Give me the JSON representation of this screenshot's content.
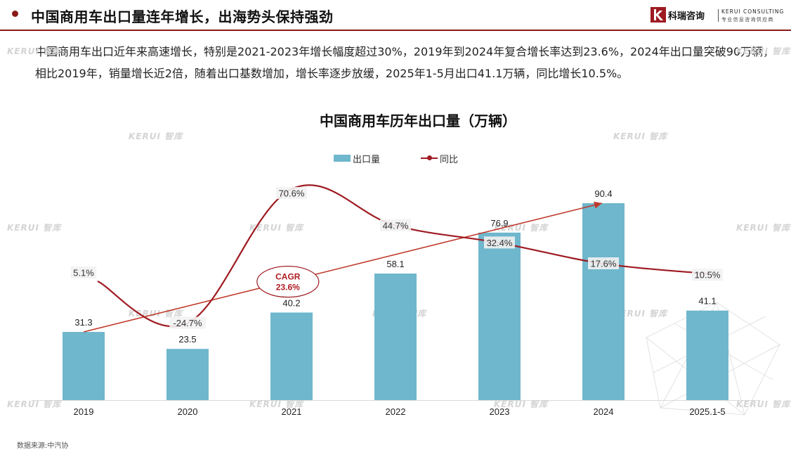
{
  "header": {
    "title": "中国商用车出口量连年增长，出海势头保持强劲",
    "brand_cn": "科瑞咨询",
    "brand_en": "KERUI CONSULTING",
    "brand_en_sub": "专业信息咨询供应商"
  },
  "description": "中国商用车出口近年来高速增长，特别是2021-2023年增长幅度超过30%，2019年到2024年复合增长率达到23.6%，2024年出口量突破90万辆，相比2019年，销量增长近2倍，随着出口基数增加，增长率逐步放缓，2025年1-5月出口41.1万辆，同比增长10.5%。",
  "watermark": {
    "text": "KERUI 智库"
  },
  "source": "数据来源:中汽协",
  "colors": {
    "bar": "#6fb7cc",
    "line": "#9e1b22",
    "accent": "#8b1a1a"
  },
  "chart_data": {
    "type": "bar",
    "title": "中国商用车历年出口量（万辆）",
    "categories": [
      "2019",
      "2020",
      "2021",
      "2022",
      "2023",
      "2024",
      "2025.1-5"
    ],
    "series": [
      {
        "name": "出口量",
        "type": "bar",
        "axis": "left",
        "values": [
          31.3,
          23.5,
          40.2,
          58.1,
          76.9,
          90.4,
          41.1
        ],
        "labels": [
          "31.3",
          "23.5",
          "40.2",
          "58.1",
          "76.9",
          "90.4",
          "41.1"
        ]
      },
      {
        "name": "同比",
        "type": "line",
        "axis": "right",
        "smooth": true,
        "values": [
          5.1,
          -24.7,
          70.6,
          44.7,
          32.4,
          17.6,
          10.5
        ],
        "labels": [
          "5.1%",
          "-24.7%",
          "70.6%",
          "44.7%",
          "32.4%",
          "17.6%",
          "10.5%"
        ]
      }
    ],
    "annotation": {
      "text_line1": "CAGR",
      "text_line2": "23.6%",
      "from": "2019",
      "to": "2024"
    },
    "legend": "top",
    "grid": false
  }
}
